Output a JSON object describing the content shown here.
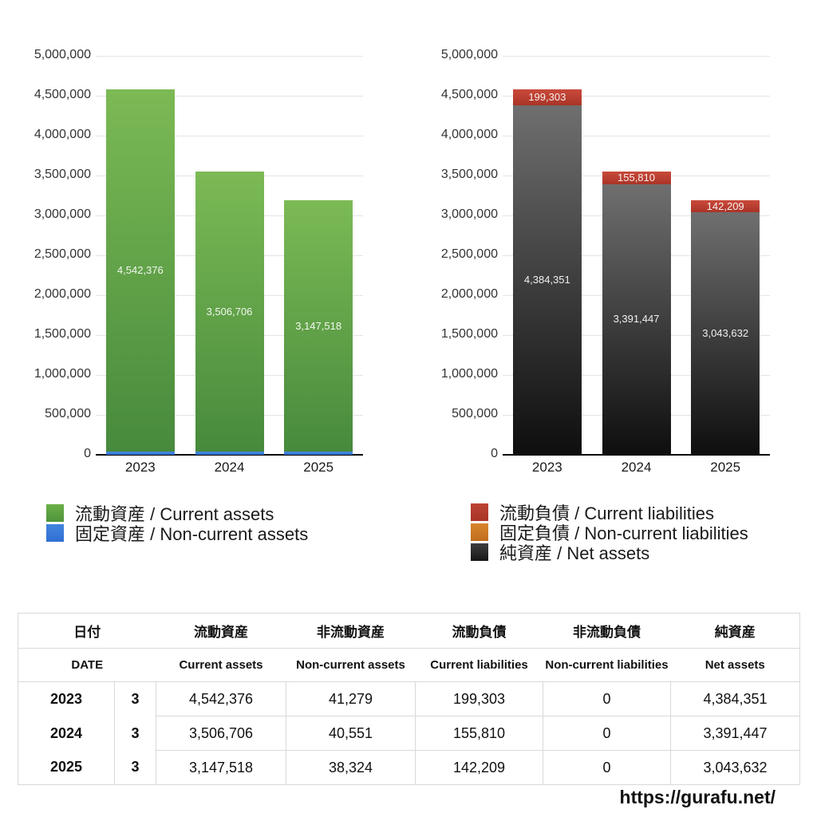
{
  "page": {
    "url": "https://gurafu.net/"
  },
  "chart_data": [
    {
      "type": "bar",
      "stacked": true,
      "title": "",
      "xlabel": "",
      "ylabel": "",
      "categories": [
        "2023",
        "2024",
        "2025"
      ],
      "ylim": [
        0,
        5000000
      ],
      "ytick_step": 500000,
      "grid": true,
      "series": [
        {
          "name": "固定資産 / Non-current assets",
          "values": [
            41279,
            40551,
            38324
          ],
          "color_top": "#4a8ae2",
          "color_bottom": "#2e6fd2",
          "label_mode": "above"
        },
        {
          "name": "流動資産 / Current assets",
          "values": [
            4542376,
            3506706,
            3147518
          ],
          "color_top": "#7cba55",
          "color_bottom": "#478a3c",
          "label_mode": "center"
        }
      ],
      "legend": [
        {
          "label": "流動資産 / Current assets",
          "color_top": "#6cb048",
          "color_bottom": "#4f943c"
        },
        {
          "label": "固定資産 / Non-current assets",
          "color_top": "#4485e0",
          "color_bottom": "#2f6fd2"
        }
      ],
      "legend_position": "bottom-left"
    },
    {
      "type": "bar",
      "stacked": true,
      "title": "",
      "xlabel": "",
      "ylabel": "",
      "categories": [
        "2023",
        "2024",
        "2025"
      ],
      "ylim": [
        0,
        5000000
      ],
      "ytick_step": 500000,
      "grid": true,
      "series": [
        {
          "name": "純資産 / Net assets",
          "values": [
            4384351,
            3391447,
            3043632
          ],
          "color_top": "#6f6f6f",
          "color_bottom": "#0e0e0e",
          "label_mode": "center"
        },
        {
          "name": "固定負債 / Non-current liabilities",
          "values": [
            0,
            0,
            0
          ],
          "color_top": "#d8842c",
          "color_bottom": "#c06f1e",
          "label_mode": "center"
        },
        {
          "name": "流動負債 / Current liabilities",
          "values": [
            199303,
            155810,
            142209
          ],
          "color_top": "#c94a3b",
          "color_bottom": "#a93427",
          "label_mode": "center"
        }
      ],
      "legend": [
        {
          "label": "流動負債 / Current liabilities",
          "color_top": "#bc4334",
          "color_bottom": "#a93427"
        },
        {
          "label": "固定負債 / Non-current liabilities",
          "color_top": "#d8842c",
          "color_bottom": "#c06f1e"
        },
        {
          "label": "純資産 / Net assets",
          "color_top": "#3f3f3f",
          "color_bottom": "#161616"
        }
      ],
      "legend_position": "bottom-left"
    }
  ],
  "table": {
    "headers_ja": [
      "日付",
      "流動資産",
      "非流動資産",
      "流動負債",
      "非流動負債",
      "純資産"
    ],
    "headers_en": [
      "DATE",
      "Current assets",
      "Non-current assets",
      "Current liabilities",
      "Non-current liabilities",
      "Net assets"
    ],
    "rows": [
      {
        "year": "2023",
        "month": "3",
        "values": [
          "4,542,376",
          "41,279",
          "199,303",
          "0",
          "4,384,351"
        ]
      },
      {
        "year": "2024",
        "month": "3",
        "values": [
          "3,506,706",
          "40,551",
          "155,810",
          "0",
          "3,391,447"
        ]
      },
      {
        "year": "2025",
        "month": "3",
        "values": [
          "3,147,518",
          "38,324",
          "142,209",
          "0",
          "3,043,632"
        ]
      }
    ]
  }
}
